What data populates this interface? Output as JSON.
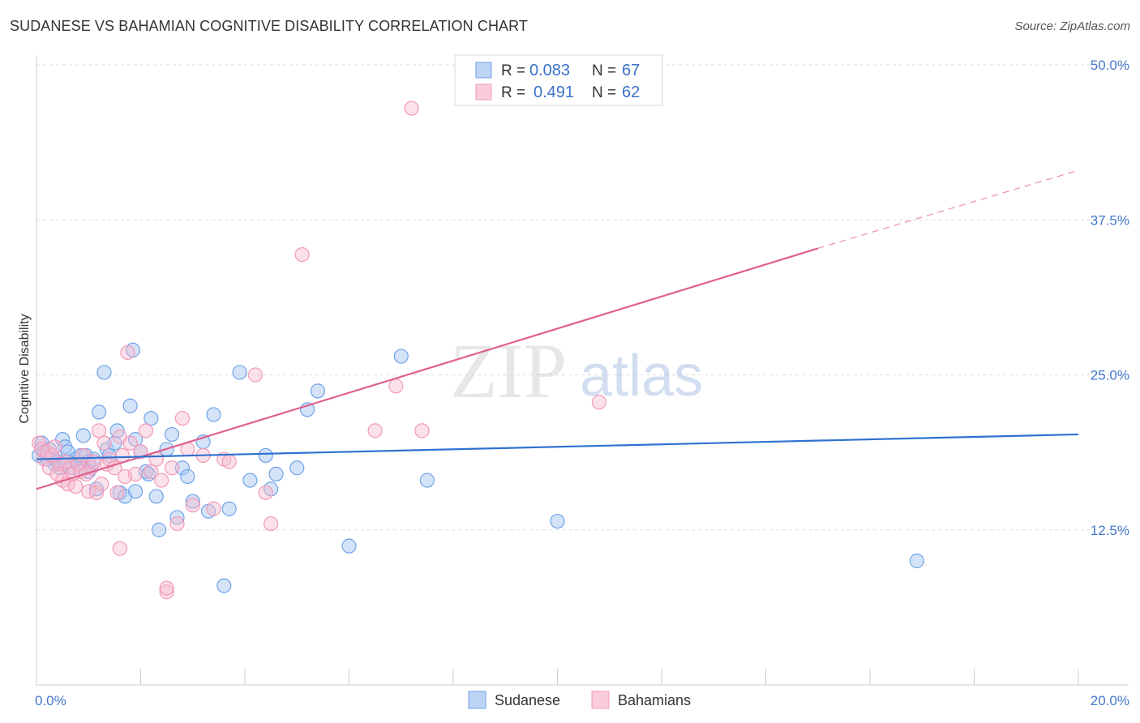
{
  "header": {
    "title": "SUDANESE VS BAHAMIAN COGNITIVE DISABILITY CORRELATION CHART",
    "source": "Source: ZipAtlas.com"
  },
  "watermark": {
    "zip": "ZIP",
    "atlas": "atlas"
  },
  "legend_top": {
    "r_label": "R =",
    "n_label": "N =",
    "rows": [
      {
        "r": "0.083",
        "n": "67"
      },
      {
        "r": "0.491",
        "n": "62"
      }
    ]
  },
  "chart_data": {
    "type": "scatter",
    "title": "SUDANESE VS BAHAMIAN COGNITIVE DISABILITY CORRELATION CHART",
    "xlabel": "",
    "ylabel": "Cognitive Disability",
    "xlim": [
      0,
      20
    ],
    "ylim": [
      0,
      50
    ],
    "x_tick_labels": [
      "0.0%",
      "20.0%"
    ],
    "y_ticks": [
      12.5,
      25.0,
      37.5,
      50.0
    ],
    "y_tick_labels": [
      "12.5%",
      "25.0%",
      "37.5%",
      "50.0%"
    ],
    "grid": true,
    "legend_position": "bottom-center",
    "colors": {
      "sudanese": "#6fa3e8",
      "bahamians": "#f29ab8",
      "sudanese_line": "#2f72d0",
      "bahamians_line": "#e0608e"
    },
    "series": [
      {
        "name": "Sudanese",
        "r": 0.083,
        "n": 67,
        "trend": {
          "x": [
            0,
            20
          ],
          "y": [
            18.2,
            20.2
          ]
        },
        "x": [
          0.05,
          0.1,
          0.15,
          0.2,
          0.25,
          0.3,
          0.35,
          0.4,
          0.45,
          0.5,
          0.55,
          0.6,
          0.7,
          0.75,
          0.8,
          0.85,
          0.9,
          0.95,
          1.0,
          1.05,
          1.1,
          1.15,
          1.2,
          1.3,
          1.35,
          1.4,
          1.5,
          1.55,
          1.6,
          1.7,
          1.8,
          1.85,
          1.9,
          2.0,
          2.1,
          2.15,
          2.2,
          2.3,
          2.35,
          2.5,
          2.6,
          2.7,
          2.8,
          2.9,
          3.0,
          3.2,
          3.3,
          3.4,
          3.6,
          3.7,
          3.9,
          4.1,
          4.4,
          4.5,
          4.6,
          5.0,
          5.2,
          5.4,
          6.0,
          7.0,
          7.5,
          10.0,
          16.9,
          1.0,
          1.9,
          0.3,
          0.6
        ],
        "y": [
          18.5,
          19.5,
          18.8,
          18.2,
          19.0,
          18.5,
          17.8,
          18.0,
          17.5,
          19.8,
          19.2,
          18.8,
          17.5,
          18.2,
          17.8,
          18.5,
          20.1,
          18.5,
          18.0,
          17.5,
          18.2,
          15.8,
          22.0,
          25.2,
          19.0,
          18.5,
          19.5,
          20.5,
          15.5,
          15.2,
          22.5,
          27.0,
          19.8,
          18.8,
          17.2,
          17.0,
          21.5,
          15.2,
          12.5,
          19.0,
          20.2,
          13.5,
          17.5,
          16.8,
          14.8,
          19.6,
          14.0,
          21.8,
          8.0,
          14.2,
          25.2,
          16.5,
          18.5,
          15.8,
          17.0,
          17.5,
          22.2,
          23.7,
          11.2,
          26.5,
          16.5,
          13.2,
          10.0,
          17.2,
          15.6,
          18.5,
          18.0
        ]
      },
      {
        "name": "Bahamians",
        "r": 0.491,
        "n": 62,
        "trend": {
          "x": [
            0,
            15
          ],
          "y": [
            15.8,
            35.2
          ]
        },
        "trend_dashed": {
          "x": [
            15,
            20
          ],
          "y": [
            35.2,
            41.5
          ]
        },
        "x": [
          0.05,
          0.1,
          0.15,
          0.2,
          0.25,
          0.3,
          0.35,
          0.4,
          0.45,
          0.5,
          0.55,
          0.6,
          0.65,
          0.7,
          0.75,
          0.8,
          0.85,
          0.9,
          0.95,
          1.0,
          1.05,
          1.1,
          1.15,
          1.2,
          1.25,
          1.3,
          1.35,
          1.4,
          1.5,
          1.55,
          1.6,
          1.65,
          1.7,
          1.75,
          1.8,
          1.9,
          2.0,
          2.1,
          2.2,
          2.3,
          2.4,
          2.5,
          2.6,
          2.7,
          2.8,
          2.9,
          3.0,
          3.2,
          3.4,
          3.6,
          3.7,
          4.2,
          4.4,
          4.5,
          5.1,
          6.5,
          6.9,
          7.2,
          7.4,
          10.8,
          1.6,
          2.5
        ],
        "y": [
          19.5,
          19.0,
          18.2,
          18.8,
          17.5,
          18.5,
          19.2,
          17.0,
          17.8,
          16.5,
          18.0,
          16.2,
          17.5,
          17.0,
          16.0,
          17.8,
          17.2,
          18.5,
          17.0,
          15.6,
          17.5,
          18.0,
          15.5,
          20.5,
          16.2,
          19.5,
          17.8,
          18.2,
          17.5,
          15.5,
          20.0,
          18.5,
          16.8,
          26.8,
          19.5,
          17.0,
          18.8,
          20.5,
          17.2,
          18.2,
          16.5,
          7.5,
          17.5,
          13.0,
          21.5,
          19.0,
          14.5,
          18.5,
          14.2,
          18.2,
          18.0,
          25.0,
          15.5,
          13.0,
          34.7,
          20.5,
          24.1,
          46.5,
          20.5,
          22.8,
          11.0,
          7.8
        ]
      }
    ]
  },
  "bottom_legend": [
    {
      "label": "Sudanese"
    },
    {
      "label": "Bahamians"
    }
  ]
}
